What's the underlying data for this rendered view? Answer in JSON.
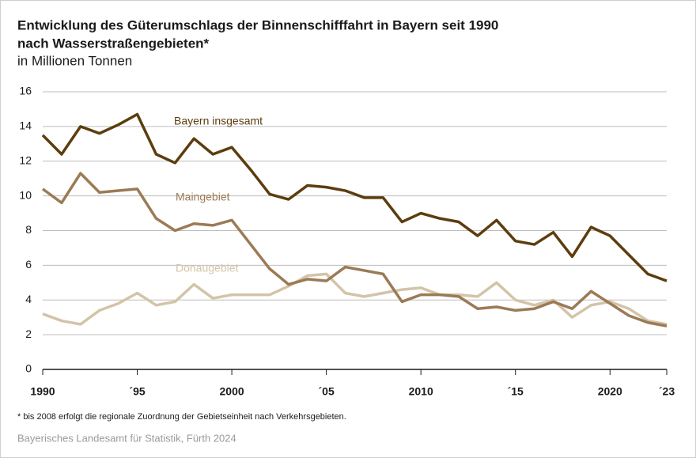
{
  "chart_data": {
    "type": "line",
    "title": [
      "Entwicklung des Güterumschlags der Binnenschifffahrt in Bayern seit 1990",
      "nach Wasserstraßengebieten*"
    ],
    "subtitle": "in Millionen Tonnen",
    "footnote": "* bis 2008 erfolgt die regionale Zuordnung der Gebietseinheit nach Verkehrsgebieten.",
    "source": "Bayerisches Landesamt für Statistik, Fürth 2024",
    "x": [
      1990,
      1991,
      1992,
      1993,
      1994,
      1995,
      1996,
      1997,
      1998,
      1999,
      2000,
      2001,
      2002,
      2003,
      2004,
      2005,
      2006,
      2007,
      2008,
      2009,
      2010,
      2011,
      2012,
      2013,
      2014,
      2015,
      2016,
      2017,
      2018,
      2019,
      2020,
      2021,
      2022,
      2023
    ],
    "series": [
      {
        "name": "Bayern insgesamt",
        "color": "#5c3d0e",
        "values": [
          13.5,
          12.4,
          14.0,
          13.6,
          14.1,
          14.7,
          12.4,
          11.9,
          13.3,
          12.4,
          12.8,
          11.5,
          10.1,
          9.8,
          10.6,
          10.5,
          10.3,
          9.9,
          9.9,
          8.5,
          9.0,
          8.7,
          8.5,
          7.7,
          8.6,
          7.4,
          7.2,
          7.9,
          6.5,
          8.2,
          7.7,
          6.6,
          5.5,
          5.1
        ]
      },
      {
        "name": "Maingebiet",
        "color": "#9b7a55",
        "values": [
          10.4,
          9.6,
          11.3,
          10.2,
          10.3,
          10.4,
          8.7,
          8.0,
          8.4,
          8.3,
          8.6,
          7.2,
          5.8,
          4.9,
          5.2,
          5.1,
          5.9,
          5.7,
          5.5,
          3.9,
          4.3,
          4.3,
          4.2,
          3.5,
          3.6,
          3.4,
          3.5,
          3.9,
          3.5,
          4.5,
          3.8,
          3.1,
          2.7,
          2.5
        ]
      },
      {
        "name": "Donaugebiet",
        "color": "#d3c4a8",
        "values": [
          3.2,
          2.8,
          2.6,
          3.4,
          3.8,
          4.4,
          3.7,
          3.9,
          4.9,
          4.1,
          4.3,
          4.3,
          4.3,
          4.8,
          5.4,
          5.5,
          4.4,
          4.2,
          4.4,
          4.6,
          4.7,
          4.3,
          4.3,
          4.2,
          5.0,
          4.0,
          3.7,
          4.0,
          3.0,
          3.7,
          3.9,
          3.5,
          2.8,
          2.6
        ]
      }
    ],
    "xlim": [
      1990,
      2023
    ],
    "xticks": [
      1990,
      {
        "value": 1995,
        "label": "´95"
      },
      2000,
      {
        "value": 2005,
        "label": "´05"
      },
      2010,
      {
        "value": 2015,
        "label": "´15"
      },
      2020,
      {
        "value": 2023,
        "label": "´23"
      }
    ],
    "ylim": [
      0,
      16
    ],
    "yticks": [
      0,
      2,
      4,
      6,
      8,
      10,
      12,
      14,
      16
    ],
    "grid": true
  }
}
